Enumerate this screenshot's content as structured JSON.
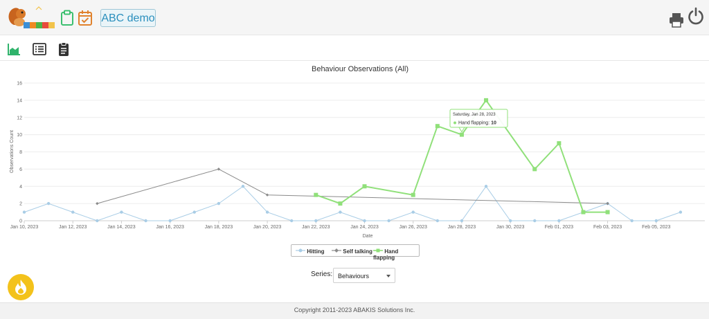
{
  "header": {
    "demo_label": "ABC demo"
  },
  "chart_data": {
    "type": "line",
    "title": "Behaviour Observations (All)",
    "xlabel": "Date",
    "ylabel": "Observations Count",
    "ylim": [
      0,
      16
    ],
    "yticks": [
      "0",
      "2",
      "4",
      "6",
      "8",
      "10",
      "12",
      "14",
      "16"
    ],
    "x_range": [
      "2023-01-10",
      "2023-02-07"
    ],
    "x_tick_labels": [
      {
        "date": "2023-01-10",
        "label": "Jan 10, 2023"
      },
      {
        "date": "2023-01-12",
        "label": "Jan 12, 2023"
      },
      {
        "date": "2023-01-14",
        "label": "Jan 14, 2023"
      },
      {
        "date": "2023-01-16",
        "label": "Jan 16, 2023"
      },
      {
        "date": "2023-01-18",
        "label": "Jan 18, 2023"
      },
      {
        "date": "2023-01-20",
        "label": "Jan 20, 2023"
      },
      {
        "date": "2023-01-22",
        "label": "Jan 22, 2023"
      },
      {
        "date": "2023-01-24",
        "label": "Jan 24, 2023"
      },
      {
        "date": "2023-01-26",
        "label": "Jan 26, 2023"
      },
      {
        "date": "2023-01-28",
        "label": "Jan 28, 2023"
      },
      {
        "date": "2023-01-30",
        "label": "Jan 30, 2023"
      },
      {
        "date": "2023-02-01",
        "label": "Feb 01, 2023"
      },
      {
        "date": "2023-02-03",
        "label": "Feb 03, 2023"
      },
      {
        "date": "2023-02-05",
        "label": "Feb 05, 2023"
      }
    ],
    "grid": true,
    "legend_position": "bottom",
    "series": [
      {
        "name": "Hitting",
        "color": "#a9cde6",
        "marker": "circle",
        "points": [
          [
            "2023-01-10",
            1
          ],
          [
            "2023-01-11",
            2
          ],
          [
            "2023-01-12",
            1
          ],
          [
            "2023-01-13",
            0
          ],
          [
            "2023-01-14",
            1
          ],
          [
            "2023-01-15",
            0
          ],
          [
            "2023-01-16",
            0
          ],
          [
            "2023-01-17",
            1
          ],
          [
            "2023-01-18",
            2
          ],
          [
            "2023-01-19",
            4
          ],
          [
            "2023-01-20",
            1
          ],
          [
            "2023-01-21",
            0
          ],
          [
            "2023-01-22",
            0
          ],
          [
            "2023-01-23",
            1
          ],
          [
            "2023-01-24",
            0
          ],
          [
            "2023-01-25",
            0
          ],
          [
            "2023-01-26",
            1
          ],
          [
            "2023-01-27",
            0
          ],
          [
            "2023-01-28",
            0
          ],
          [
            "2023-01-29",
            4
          ],
          [
            "2023-01-30",
            0
          ],
          [
            "2023-01-31",
            0
          ],
          [
            "2023-02-01",
            0
          ],
          [
            "2023-02-02",
            1
          ],
          [
            "2023-02-03",
            2
          ],
          [
            "2023-02-04",
            0
          ],
          [
            "2023-02-05",
            0
          ],
          [
            "2023-02-06",
            1
          ]
        ]
      },
      {
        "name": "Self talking",
        "color": "#8a8a8a",
        "marker": "diamond",
        "points": [
          [
            "2023-01-13",
            2
          ],
          [
            "2023-01-18",
            6
          ],
          [
            "2023-01-20",
            3
          ],
          [
            "2023-02-03",
            2
          ]
        ]
      },
      {
        "name": "Hand flapping",
        "color": "#90e07a",
        "marker": "square",
        "points": [
          [
            "2023-01-22",
            3
          ],
          [
            "2023-01-23",
            2
          ],
          [
            "2023-01-24",
            4
          ],
          [
            "2023-01-26",
            3
          ],
          [
            "2023-01-27",
            11
          ],
          [
            "2023-01-28",
            10
          ],
          [
            "2023-01-29",
            14
          ],
          [
            "2023-01-31",
            6
          ],
          [
            "2023-02-01",
            9
          ],
          [
            "2023-02-02",
            1
          ],
          [
            "2023-02-03",
            1
          ]
        ]
      }
    ],
    "tooltip": {
      "date": "2023-01-28",
      "title": "Saturday, Jan 28, 2023",
      "series": "Hand flapping",
      "label": "Hand flapping:",
      "value": "10"
    }
  },
  "controls": {
    "series_label": "Series:",
    "series_selected": "Behaviours"
  },
  "footer": {
    "copyright": "Copyright 2011-2023 ABAKIS Solutions Inc."
  }
}
